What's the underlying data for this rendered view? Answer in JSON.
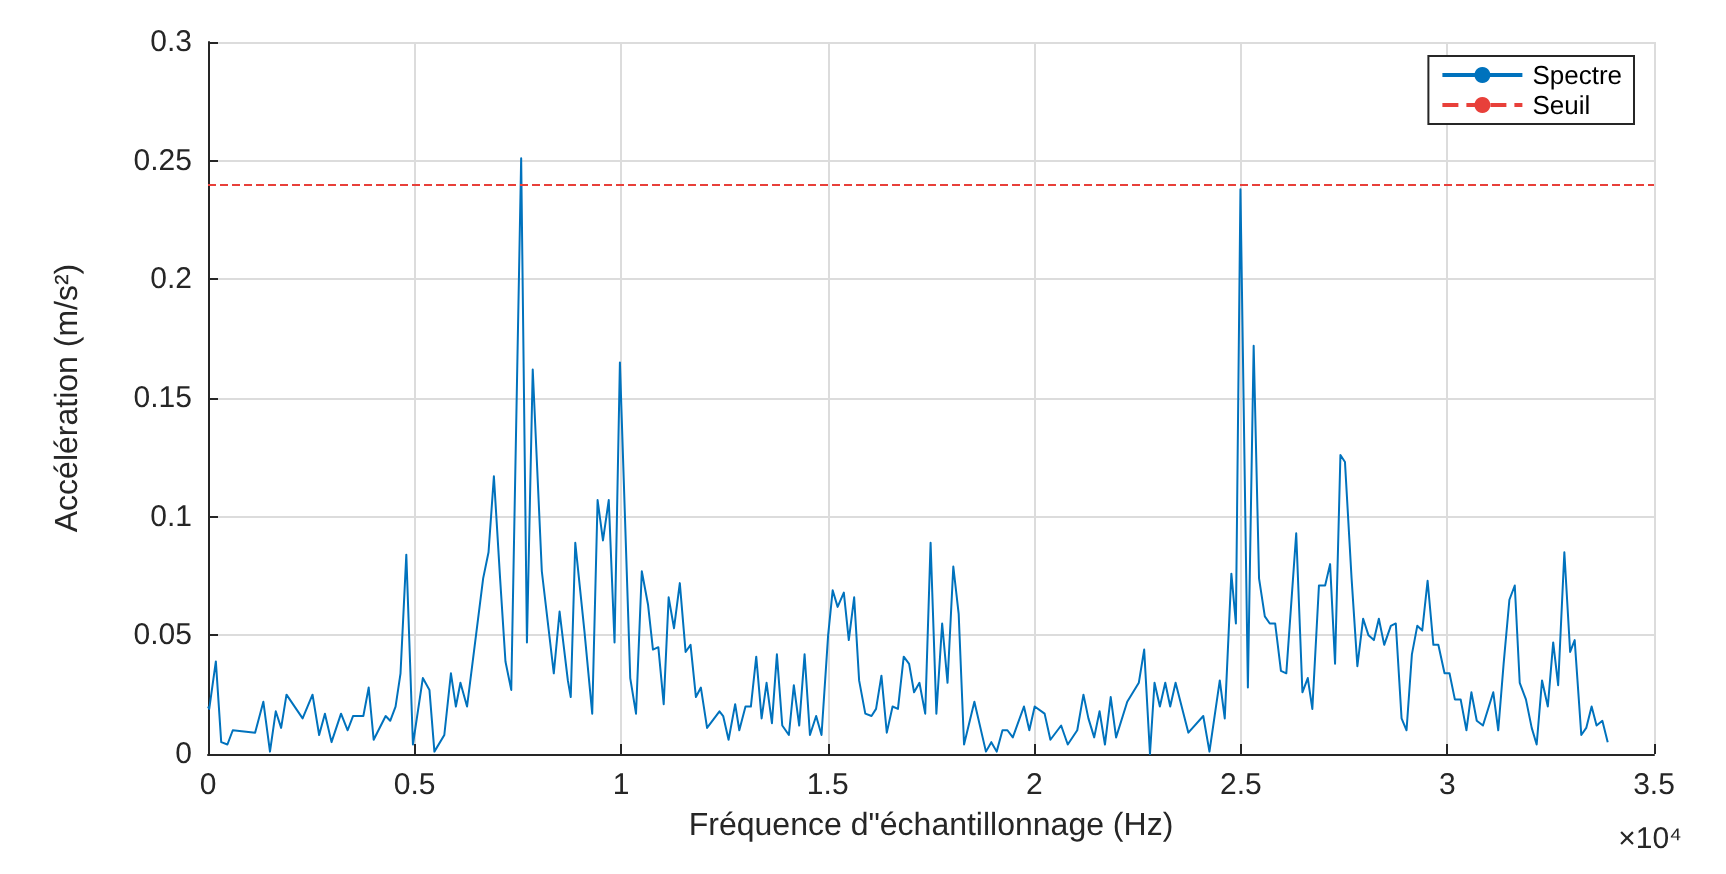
{
  "chart_data": {
    "type": "line",
    "xlabel": "Fréquence d\"échantillonnage (Hz)",
    "ylabel": "Accélération (m/s²)",
    "annotations": [
      "×10⁴"
    ],
    "xlim": [
      0,
      3.5
    ],
    "xticks": [
      0,
      0.5,
      1,
      1.5,
      2,
      2.5,
      3,
      3.5
    ],
    "ylim": [
      0,
      0.3
    ],
    "yticks": [
      0,
      0.05,
      0.1,
      0.15,
      0.2,
      0.25,
      0.3
    ],
    "grid": true,
    "legend": "top right",
    "marker": "none",
    "line_style": "solid",
    "ref_lines": [
      {
        "axis": "y",
        "value": 0.24,
        "label": "Seuil",
        "color": "#e8403a",
        "line_style": "dashed"
      }
    ],
    "series": [
      {
        "name": "Spectre",
        "color": "#0072bd",
        "x": [
          0,
          0.003,
          0.019,
          0.032,
          0.047,
          0.06,
          0.114,
          0.134,
          0.15,
          0.164,
          0.177,
          0.19,
          0.229,
          0.253,
          0.269,
          0.283,
          0.299,
          0.322,
          0.338,
          0.351,
          0.376,
          0.389,
          0.401,
          0.43,
          0.441,
          0.454,
          0.466,
          0.48,
          0.496,
          0.52,
          0.536,
          0.548,
          0.572,
          0.588,
          0.6,
          0.611,
          0.627,
          0.666,
          0.679,
          0.692,
          0.707,
          0.72,
          0.734,
          0.758,
          0.772,
          0.786,
          0.808,
          0.837,
          0.851,
          0.871,
          0.878,
          0.889,
          0.911,
          0.93,
          0.943,
          0.956,
          0.97,
          0.984,
          0.997,
          1.022,
          1.036,
          1.05,
          1.065,
          1.077,
          1.09,
          1.103,
          1.115,
          1.128,
          1.142,
          1.156,
          1.168,
          1.181,
          1.193,
          1.208,
          1.238,
          1.247,
          1.26,
          1.276,
          1.286,
          1.301,
          1.314,
          1.327,
          1.34,
          1.352,
          1.365,
          1.377,
          1.39,
          1.406,
          1.418,
          1.431,
          1.444,
          1.457,
          1.472,
          1.485,
          1.501,
          1.512,
          1.524,
          1.539,
          1.551,
          1.564,
          1.576,
          1.591,
          1.606,
          1.617,
          1.63,
          1.643,
          1.657,
          1.67,
          1.684,
          1.697,
          1.709,
          1.722,
          1.736,
          1.749,
          1.763,
          1.777,
          1.79,
          1.804,
          1.817,
          1.83,
          1.855,
          1.883,
          1.896,
          1.909,
          1.923,
          1.935,
          1.948,
          1.975,
          1.988,
          2.001,
          2.025,
          2.039,
          2.065,
          2.081,
          2.104,
          2.119,
          2.131,
          2.145,
          2.158,
          2.171,
          2.185,
          2.198,
          2.225,
          2.253,
          2.266,
          2.28,
          2.291,
          2.304,
          2.317,
          2.329,
          2.342,
          2.373,
          2.409,
          2.424,
          2.449,
          2.461,
          2.477,
          2.488,
          2.499,
          2.517,
          2.531,
          2.544,
          2.558,
          2.57,
          2.583,
          2.597,
          2.61,
          2.634,
          2.649,
          2.662,
          2.673,
          2.689,
          2.704,
          2.716,
          2.728,
          2.741,
          2.752,
          2.768,
          2.782,
          2.796,
          2.809,
          2.822,
          2.834,
          2.847,
          2.863,
          2.875,
          2.889,
          2.901,
          2.914,
          2.927,
          2.939,
          2.952,
          2.966,
          2.978,
          2.993,
          3.005,
          3.018,
          3.032,
          3.046,
          3.058,
          3.071,
          3.086,
          3.111,
          3.123,
          3.136,
          3.15,
          3.163,
          3.175,
          3.19,
          3.204,
          3.216,
          3.229,
          3.243,
          3.256,
          3.268,
          3.283,
          3.297,
          3.308,
          3.324,
          3.336,
          3.349,
          3.361,
          3.375,
          3.388
        ],
        "values": [
          0.02,
          0.019,
          0.039,
          0.005,
          0.004,
          0.01,
          0.009,
          0.022,
          0.001,
          0.018,
          0.011,
          0.025,
          0.015,
          0.025,
          0.008,
          0.017,
          0.005,
          0.017,
          0.01,
          0.016,
          0.016,
          0.028,
          0.006,
          0.016,
          0.014,
          0.02,
          0.034,
          0.084,
          0.004,
          0.032,
          0.027,
          0.001,
          0.008,
          0.034,
          0.02,
          0.03,
          0.02,
          0.074,
          0.085,
          0.117,
          0.074,
          0.039,
          0.027,
          0.251,
          0.047,
          0.162,
          0.077,
          0.034,
          0.06,
          0.031,
          0.024,
          0.089,
          0.052,
          0.017,
          0.107,
          0.09,
          0.107,
          0.047,
          0.165,
          0.032,
          0.017,
          0.077,
          0.063,
          0.044,
          0.045,
          0.021,
          0.066,
          0.053,
          0.072,
          0.043,
          0.046,
          0.024,
          0.028,
          0.011,
          0.018,
          0.016,
          0.006,
          0.021,
          0.01,
          0.02,
          0.02,
          0.041,
          0.015,
          0.03,
          0.013,
          0.042,
          0.012,
          0.008,
          0.029,
          0.012,
          0.042,
          0.008,
          0.016,
          0.008,
          0.05,
          0.069,
          0.062,
          0.068,
          0.048,
          0.066,
          0.031,
          0.017,
          0.016,
          0.019,
          0.033,
          0.009,
          0.02,
          0.019,
          0.041,
          0.038,
          0.026,
          0.03,
          0.017,
          0.089,
          0.017,
          0.055,
          0.03,
          0.079,
          0.059,
          0.004,
          0.022,
          0.001,
          0.005,
          0.001,
          0.01,
          0.01,
          0.007,
          0.02,
          0.01,
          0.02,
          0.017,
          0.006,
          0.012,
          0.004,
          0.01,
          0.025,
          0.015,
          0.007,
          0.018,
          0.004,
          0.024,
          0.007,
          0.022,
          0.03,
          0.044,
          0,
          0.03,
          0.02,
          0.03,
          0.02,
          0.03,
          0.009,
          0.016,
          0.001,
          0.031,
          0.015,
          0.076,
          0.055,
          0.238,
          0.028,
          0.172,
          0.074,
          0.058,
          0.055,
          0.055,
          0.035,
          0.034,
          0.093,
          0.026,
          0.032,
          0.019,
          0.071,
          0.071,
          0.08,
          0.038,
          0.126,
          0.123,
          0.074,
          0.037,
          0.057,
          0.05,
          0.048,
          0.057,
          0.046,
          0.054,
          0.055,
          0.015,
          0.01,
          0.042,
          0.054,
          0.052,
          0.073,
          0.046,
          0.046,
          0.034,
          0.034,
          0.023,
          0.023,
          0.01,
          0.026,
          0.014,
          0.012,
          0.026,
          0.01,
          0.038,
          0.065,
          0.071,
          0.03,
          0.023,
          0.011,
          0.004,
          0.031,
          0.02,
          0.047,
          0.029,
          0.085,
          0.043,
          0.048,
          0.008,
          0.011,
          0.02,
          0.012,
          0.014,
          0.005
        ]
      }
    ]
  }
}
